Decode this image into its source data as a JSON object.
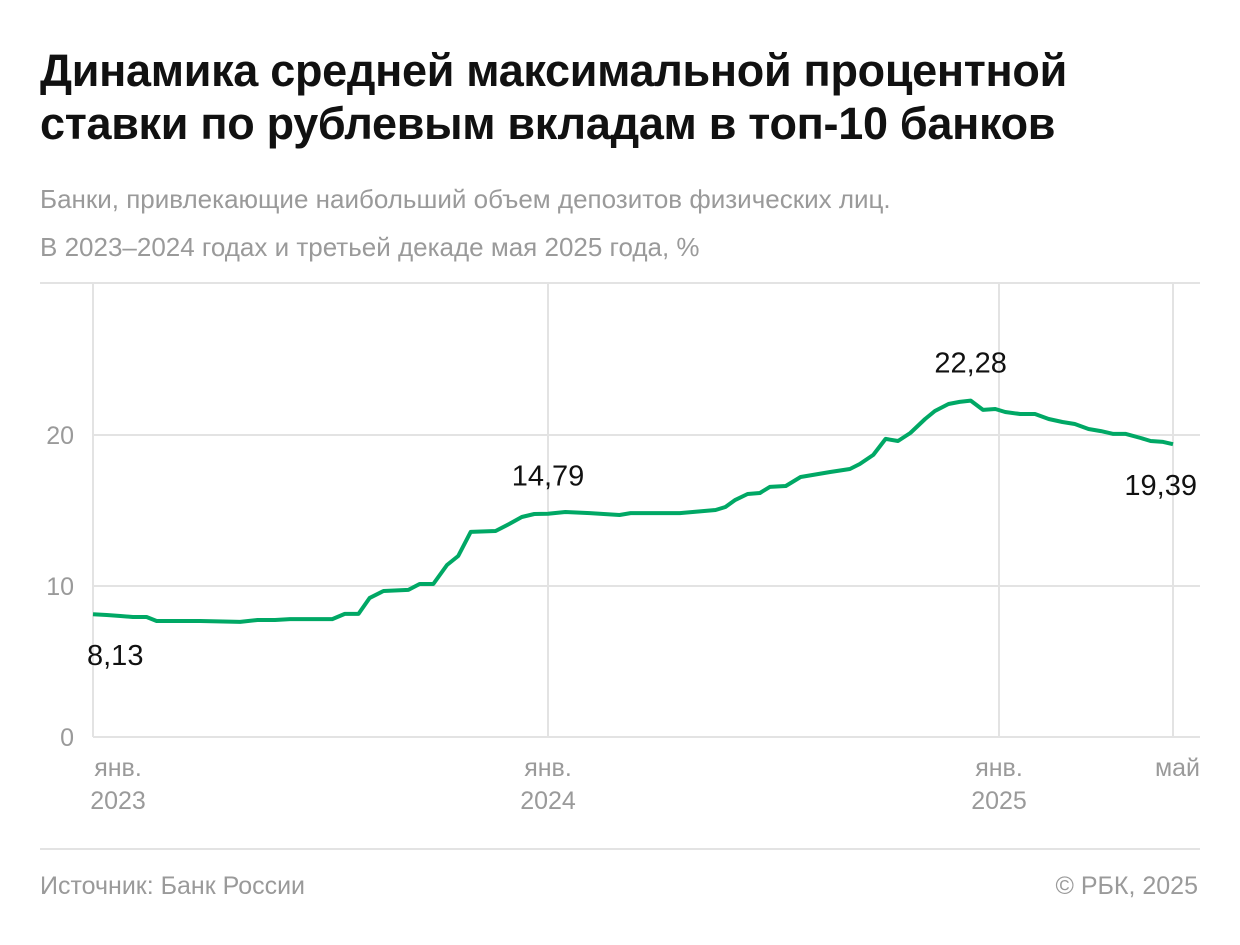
{
  "title": "Динамика средней максимальной процентной ставки по рублевым вкладам в топ-10 банков",
  "subtitle_line1": "Банки, привлекающие наибольший объем депозитов физических лиц.",
  "subtitle_line2": "В 2023–2024 годах и третьей декаде мая 2025 года, %",
  "source": "Источник: Банк России",
  "copyright": "© РБК, 2025",
  "chart_data": {
    "type": "line",
    "ylim": [
      0,
      24
    ],
    "yticks": [
      {
        "value": 0,
        "label": "0"
      },
      {
        "value": 10,
        "label": "10"
      },
      {
        "value": 20,
        "label": "20"
      }
    ],
    "xlim": [
      "2023-01-01",
      "2025-05-21"
    ],
    "xticks": [
      {
        "date": "2023-01-01",
        "line1": "янв.",
        "line2": "2023"
      },
      {
        "date": "2024-01-01",
        "line1": "янв.",
        "line2": "2024"
      },
      {
        "date": "2025-01-01",
        "line1": "янв.",
        "line2": "2025"
      },
      {
        "date": "2025-05-21",
        "line1": "май",
        "line2": ""
      }
    ],
    "grid": true,
    "color": "#00a865",
    "series": [
      {
        "x": [
          "2023-01-01",
          "2023-01-12",
          "2023-01-23",
          "2023-02-02",
          "2023-02-13",
          "2023-02-21",
          "2023-03-04",
          "2023-03-28",
          "2023-04-29",
          "2023-05-13",
          "2023-05-27",
          "2023-06-08",
          "2023-07-12",
          "2023-07-22",
          "2023-08-02",
          "2023-08-11",
          "2023-08-22",
          "2023-09-11",
          "2023-09-20",
          "2023-10-01",
          "2023-10-12",
          "2023-10-21",
          "2023-10-31",
          "2023-11-20",
          "2023-12-01",
          "2023-12-11",
          "2023-12-21",
          "2024-01-01",
          "2024-01-15",
          "2024-02-04",
          "2024-02-28",
          "2024-03-08",
          "2024-04-17",
          "2024-05-16",
          "2024-05-24",
          "2024-06-01",
          "2024-06-11",
          "2024-06-21",
          "2024-06-29",
          "2024-07-12",
          "2024-07-24",
          "2024-08-17",
          "2024-09-02",
          "2024-09-10",
          "2024-09-21",
          "2024-10-01",
          "2024-10-11",
          "2024-10-21",
          "2024-11-02",
          "2024-11-10",
          "2024-11-21",
          "2024-11-30",
          "2024-12-09",
          "2024-12-19",
          "2024-12-29",
          "2025-01-06",
          "2025-01-18",
          "2025-01-30",
          "2025-02-10",
          "2025-02-21",
          "2025-03-03",
          "2025-03-14",
          "2025-03-24",
          "2025-04-03",
          "2025-04-13",
          "2025-04-25",
          "2025-05-03",
          "2025-05-13",
          "2025-05-21"
        ],
        "y": [
          8.13,
          8.08,
          8.01,
          7.95,
          7.95,
          7.68,
          7.68,
          7.68,
          7.62,
          7.75,
          7.75,
          7.81,
          7.81,
          8.15,
          8.15,
          9.21,
          9.67,
          9.74,
          10.13,
          10.13,
          11.39,
          11.99,
          13.58,
          13.64,
          14.11,
          14.57,
          14.77,
          14.79,
          14.9,
          14.83,
          14.7,
          14.83,
          14.83,
          15.03,
          15.23,
          15.7,
          16.09,
          16.16,
          16.56,
          16.62,
          17.22,
          17.55,
          17.75,
          18.08,
          18.68,
          19.74,
          19.6,
          20.13,
          21.06,
          21.59,
          22.05,
          22.19,
          22.28,
          21.66,
          21.72,
          21.52,
          21.39,
          21.39,
          21.06,
          20.86,
          20.73,
          20.4,
          20.26,
          20.07,
          20.07,
          19.8,
          19.6,
          19.54,
          19.39
        ]
      }
    ],
    "annotations": [
      {
        "date": "2023-01-01",
        "value": 8.13,
        "label": "8,13",
        "position": "below"
      },
      {
        "date": "2024-01-01",
        "value": 14.79,
        "label": "14,79",
        "position": "above"
      },
      {
        "date": "2024-12-09",
        "value": 22.28,
        "label": "22,28",
        "position": "above"
      },
      {
        "date": "2025-05-21",
        "value": 19.39,
        "label": "19,39",
        "position": "below"
      }
    ]
  }
}
